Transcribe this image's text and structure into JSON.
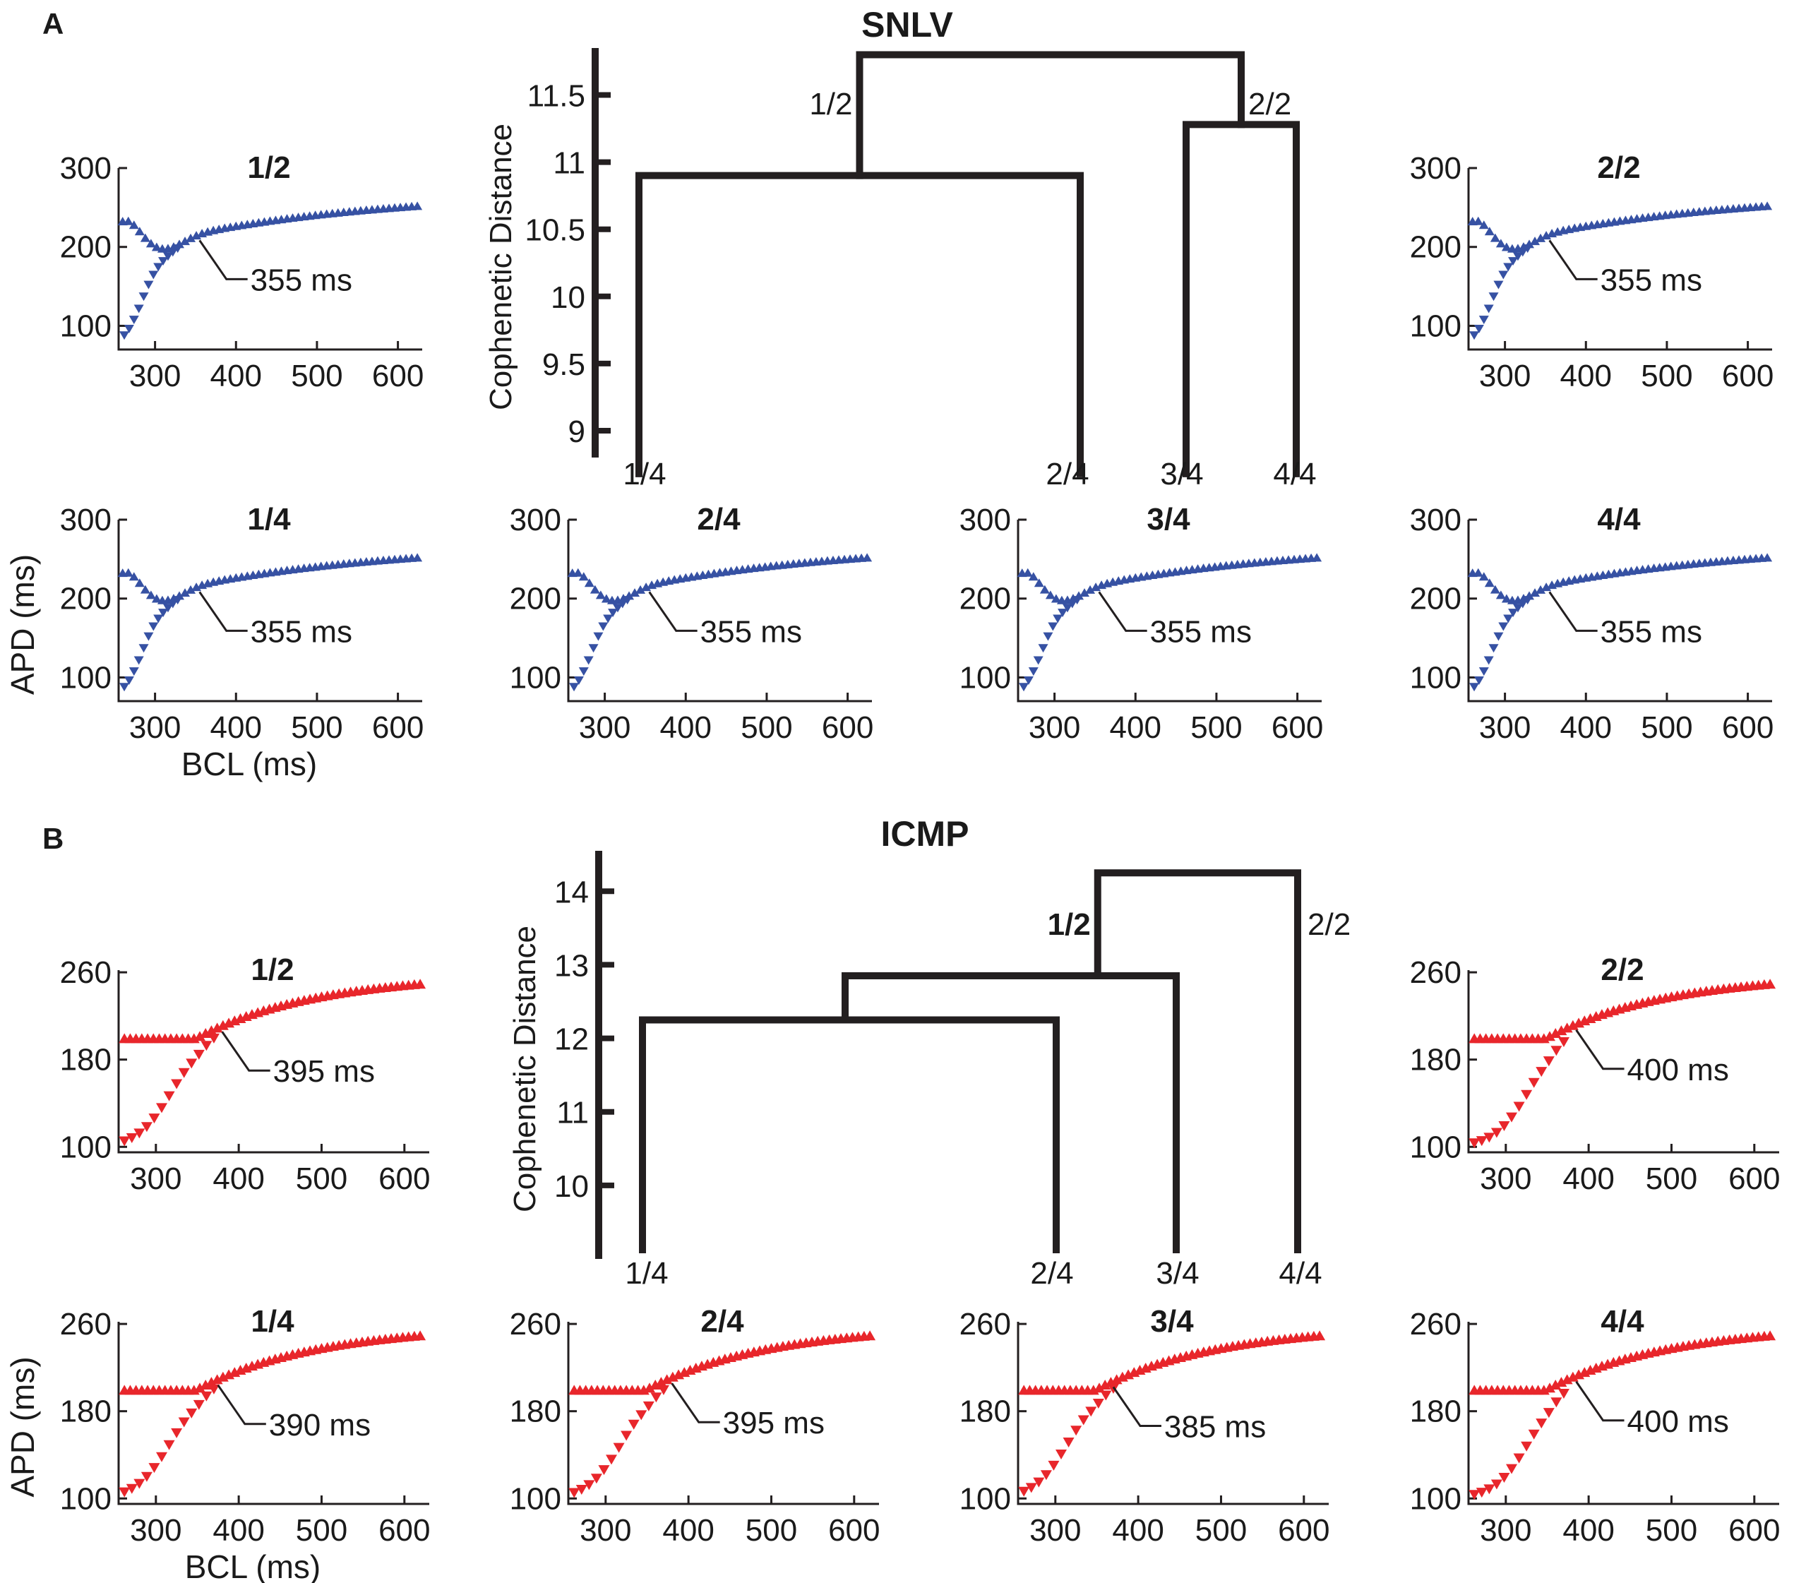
{
  "colors": {
    "blue": "#3651a3",
    "red": "#e8262b",
    "ink": "#231f20"
  },
  "panel_a": {
    "letter": "A",
    "title": "SNLV",
    "dendrogram": {
      "ylabel": "Cophenetic Distance",
      "yticks": [
        9,
        9.5,
        10,
        10.5,
        11,
        11.5
      ],
      "ytick_labels": [
        "9",
        "9.5",
        "10",
        "10.5",
        "11",
        "11.5"
      ],
      "ylim": [
        8.8,
        11.85
      ],
      "leaves": [
        "1/4",
        "2/4",
        "3/4",
        "4/4"
      ],
      "merge_low_left": 10.9,
      "merge_low_right": 11.28,
      "merge_top": 11.8,
      "branch_labels": [
        "1/2",
        "2/2"
      ]
    }
  },
  "panel_b": {
    "letter": "B",
    "title": "ICMP",
    "dendrogram": {
      "ylabel": "Cophenetic Distance",
      "yticks": [
        10,
        11,
        12,
        13,
        14
      ],
      "ytick_labels": [
        "10",
        "11",
        "12",
        "13",
        "14"
      ],
      "ylim": [
        9,
        14.55
      ],
      "leaves": [
        "1/4",
        "2/4",
        "3/4",
        "4/4"
      ],
      "merge_12_24": 12.25,
      "merge_34": 12.85,
      "merge_top": 14.25,
      "branch_labels": [
        "1/2",
        "2/2"
      ]
    }
  },
  "chart_data": [
    {
      "id": "A-1/2",
      "type": "scatter",
      "title": "1/2",
      "color": "#3651a3",
      "xlabel": "",
      "ylabel": "",
      "xlim": [
        255,
        630
      ],
      "ylim": [
        70,
        300
      ],
      "xticks": [
        300,
        400,
        500,
        600
      ],
      "yticks": [
        100,
        200,
        300
      ],
      "xtick_labels": [
        "300",
        "400",
        "500",
        "600"
      ],
      "ytick_labels": [
        "100",
        "200",
        "300"
      ],
      "annotation": "355 ms",
      "annotation_x": 355,
      "model": "snlv"
    },
    {
      "id": "A-2/2",
      "type": "scatter",
      "title": "2/2",
      "color": "#3651a3",
      "xlabel": "",
      "ylabel": "",
      "xlim": [
        255,
        630
      ],
      "ylim": [
        70,
        300
      ],
      "xticks": [
        300,
        400,
        500,
        600
      ],
      "yticks": [
        100,
        200,
        300
      ],
      "xtick_labels": [
        "300",
        "400",
        "500",
        "600"
      ],
      "ytick_labels": [
        "100",
        "200",
        "300"
      ],
      "annotation": "355 ms",
      "annotation_x": 355,
      "model": "snlv"
    },
    {
      "id": "A-1/4",
      "type": "scatter",
      "title": "1/4",
      "color": "#3651a3",
      "xlabel": "BCL (ms)",
      "ylabel": "APD (ms)",
      "xlim": [
        255,
        630
      ],
      "ylim": [
        70,
        300
      ],
      "xticks": [
        300,
        400,
        500,
        600
      ],
      "yticks": [
        100,
        200,
        300
      ],
      "xtick_labels": [
        "300",
        "400",
        "500",
        "600"
      ],
      "ytick_labels": [
        "100",
        "200",
        "300"
      ],
      "annotation": "355 ms",
      "annotation_x": 355,
      "model": "snlv"
    },
    {
      "id": "A-2/4",
      "type": "scatter",
      "title": "2/4",
      "color": "#3651a3",
      "xlabel": "",
      "ylabel": "",
      "xlim": [
        255,
        630
      ],
      "ylim": [
        70,
        300
      ],
      "xticks": [
        300,
        400,
        500,
        600
      ],
      "yticks": [
        100,
        200,
        300
      ],
      "xtick_labels": [
        "300",
        "400",
        "500",
        "600"
      ],
      "ytick_labels": [
        "100",
        "200",
        "300"
      ],
      "annotation": "355 ms",
      "annotation_x": 355,
      "model": "snlv"
    },
    {
      "id": "A-3/4",
      "type": "scatter",
      "title": "3/4",
      "color": "#3651a3",
      "xlabel": "",
      "ylabel": "",
      "xlim": [
        255,
        630
      ],
      "ylim": [
        70,
        300
      ],
      "xticks": [
        300,
        400,
        500,
        600
      ],
      "yticks": [
        100,
        200,
        300
      ],
      "xtick_labels": [
        "300",
        "400",
        "500",
        "600"
      ],
      "ytick_labels": [
        "100",
        "200",
        "300"
      ],
      "annotation": "355 ms",
      "annotation_x": 355,
      "model": "snlv"
    },
    {
      "id": "A-4/4",
      "type": "scatter",
      "title": "4/4",
      "color": "#3651a3",
      "xlabel": "",
      "ylabel": "",
      "xlim": [
        255,
        630
      ],
      "ylim": [
        70,
        300
      ],
      "xticks": [
        300,
        400,
        500,
        600
      ],
      "yticks": [
        100,
        200,
        300
      ],
      "xtick_labels": [
        "300",
        "400",
        "500",
        "600"
      ],
      "ytick_labels": [
        "100",
        "200",
        "300"
      ],
      "annotation": "355 ms",
      "annotation_x": 355,
      "model": "snlv"
    },
    {
      "id": "B-1/2",
      "type": "scatter",
      "title": "1/2",
      "color": "#e8262b",
      "xlabel": "",
      "ylabel": "",
      "xlim": [
        255,
        630
      ],
      "ylim": [
        95,
        262
      ],
      "xticks": [
        300,
        400,
        500,
        600
      ],
      "yticks": [
        100,
        180,
        260
      ],
      "xtick_labels": [
        "300",
        "400",
        "500",
        "600"
      ],
      "ytick_labels": [
        "100",
        "180",
        "260"
      ],
      "annotation": "395 ms",
      "annotation_x": 380,
      "model": "icmp"
    },
    {
      "id": "B-2/2",
      "type": "scatter",
      "title": "2/2",
      "color": "#e8262b",
      "xlabel": "",
      "ylabel": "",
      "xlim": [
        255,
        630
      ],
      "ylim": [
        95,
        262
      ],
      "xticks": [
        300,
        400,
        500,
        600
      ],
      "yticks": [
        100,
        180,
        260
      ],
      "xtick_labels": [
        "300",
        "400",
        "500",
        "600"
      ],
      "ytick_labels": [
        "100",
        "180",
        "260"
      ],
      "annotation": "400 ms",
      "annotation_x": 385,
      "model": "icmp"
    },
    {
      "id": "B-1/4",
      "type": "scatter",
      "title": "1/4",
      "color": "#e8262b",
      "xlabel": "BCL (ms)",
      "ylabel": "APD (ms)",
      "xlim": [
        255,
        630
      ],
      "ylim": [
        95,
        262
      ],
      "xticks": [
        300,
        400,
        500,
        600
      ],
      "yticks": [
        100,
        180,
        260
      ],
      "xtick_labels": [
        "300",
        "400",
        "500",
        "600"
      ],
      "ytick_labels": [
        "100",
        "180",
        "260"
      ],
      "annotation": "390 ms",
      "annotation_x": 375,
      "model": "icmp"
    },
    {
      "id": "B-2/4",
      "type": "scatter",
      "title": "2/4",
      "color": "#e8262b",
      "xlabel": "",
      "ylabel": "",
      "xlim": [
        255,
        630
      ],
      "ylim": [
        95,
        262
      ],
      "xticks": [
        300,
        400,
        500,
        600
      ],
      "yticks": [
        100,
        180,
        260
      ],
      "xtick_labels": [
        "300",
        "400",
        "500",
        "600"
      ],
      "ytick_labels": [
        "100",
        "180",
        "260"
      ],
      "annotation": "395 ms",
      "annotation_x": 380,
      "model": "icmp"
    },
    {
      "id": "B-3/4",
      "type": "scatter",
      "title": "3/4",
      "color": "#e8262b",
      "xlabel": "",
      "ylabel": "",
      "xlim": [
        255,
        630
      ],
      "ylim": [
        95,
        262
      ],
      "xticks": [
        300,
        400,
        500,
        600
      ],
      "yticks": [
        100,
        180,
        260
      ],
      "xtick_labels": [
        "300",
        "400",
        "500",
        "600"
      ],
      "ytick_labels": [
        "100",
        "180",
        "260"
      ],
      "annotation": "385 ms",
      "annotation_x": 370,
      "model": "icmp"
    },
    {
      "id": "B-4/4",
      "type": "scatter",
      "title": "4/4",
      "color": "#e8262b",
      "xlabel": "",
      "ylabel": "",
      "xlim": [
        255,
        630
      ],
      "ylim": [
        95,
        262
      ],
      "xticks": [
        300,
        400,
        500,
        600
      ],
      "yticks": [
        100,
        180,
        260
      ],
      "xtick_labels": [
        "300",
        "400",
        "500",
        "600"
      ],
      "ytick_labels": [
        "100",
        "180",
        "260"
      ],
      "annotation": "400 ms",
      "annotation_x": 385,
      "model": "icmp"
    }
  ]
}
